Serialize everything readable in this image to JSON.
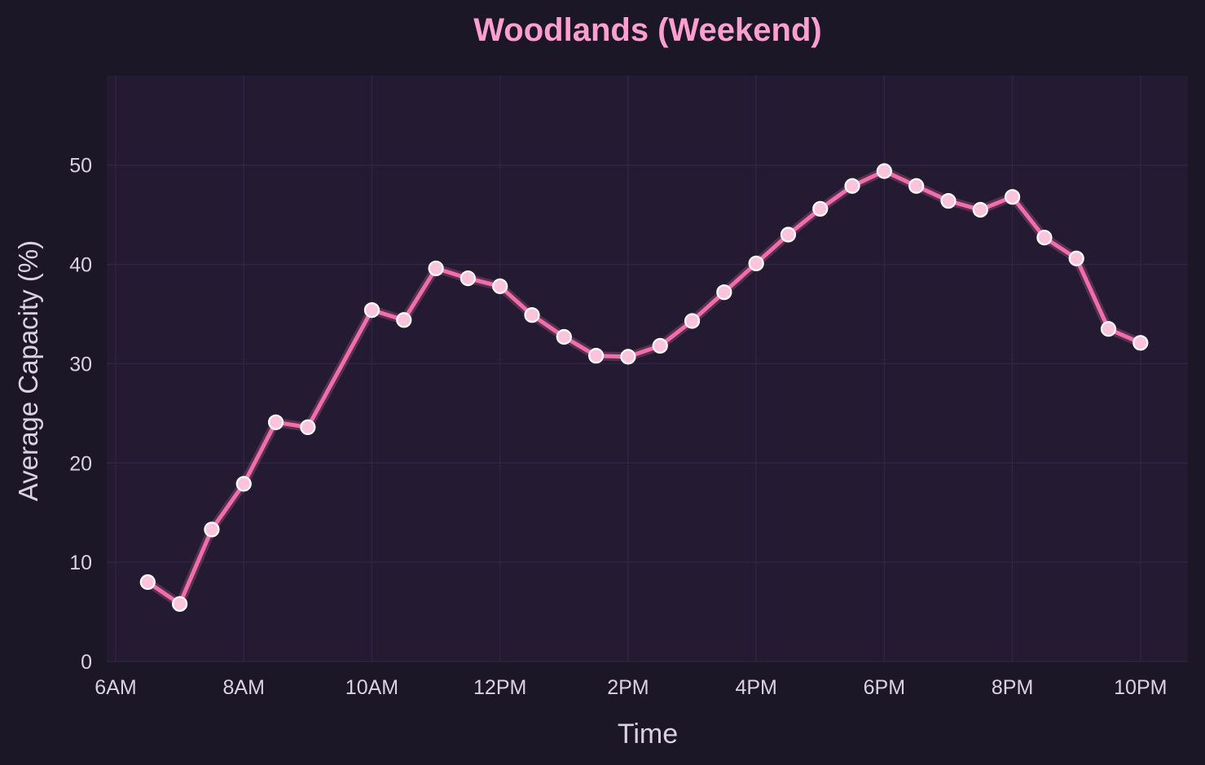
{
  "colors": {
    "page_background": "#1c1727",
    "plot_background": "#241b33",
    "grid": "#2f2740",
    "title": "#ff9fd0",
    "text": "#d9d2e0",
    "line": "#f06ea9",
    "marker_fill": "#fbc3dc",
    "marker_edge": "#ffffff"
  },
  "chart_data": {
    "type": "line",
    "title": "Woodlands (Weekend)",
    "xlabel": "Time",
    "ylabel": "Average Capacity (%)",
    "x_unit": "hour of day",
    "xlim": [
      5.86,
      22.74
    ],
    "ylim": [
      0,
      59
    ],
    "x_ticks": [
      {
        "value": 6,
        "label": "6AM"
      },
      {
        "value": 8,
        "label": "8AM"
      },
      {
        "value": 10,
        "label": "10AM"
      },
      {
        "value": 12,
        "label": "12PM"
      },
      {
        "value": 14,
        "label": "2PM"
      },
      {
        "value": 16,
        "label": "4PM"
      },
      {
        "value": 18,
        "label": "6PM"
      },
      {
        "value": 20,
        "label": "8PM"
      },
      {
        "value": 22,
        "label": "10PM"
      }
    ],
    "y_ticks": [
      0,
      10,
      20,
      30,
      40,
      50
    ],
    "grid": true,
    "legend": false,
    "series": [
      {
        "x": [
          6.5,
          7.0,
          7.5,
          8.0,
          8.5,
          9.0,
          10.0,
          10.5,
          11.0,
          11.5,
          12.0,
          12.5,
          13.0,
          13.5,
          14.0,
          14.5,
          15.0,
          15.5,
          16.0,
          16.5,
          17.0,
          17.5,
          18.0,
          18.5,
          19.0,
          19.5,
          20.0,
          20.5,
          21.0,
          21.5,
          22.0
        ],
        "y": [
          8.0,
          5.8,
          13.3,
          17.9,
          24.1,
          23.6,
          35.4,
          34.4,
          39.6,
          38.6,
          37.8,
          34.9,
          32.7,
          30.8,
          30.7,
          31.8,
          34.3,
          37.2,
          40.1,
          43.0,
          45.6,
          47.9,
          49.4,
          47.9,
          46.4,
          45.5,
          46.8,
          42.7,
          40.6,
          33.5,
          32.1
        ]
      }
    ]
  }
}
